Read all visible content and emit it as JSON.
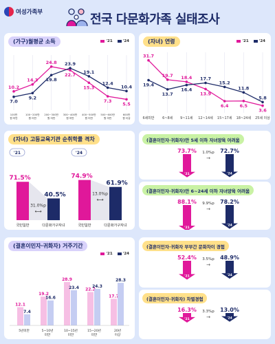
{
  "header": {
    "ministry": "여성가족부",
    "title": "전국 다문화가족 실태조사"
  },
  "legend": {
    "y21": "'21",
    "y24": "'24"
  },
  "colors": {
    "y21": "#e0189a",
    "y24": "#1d2b68",
    "background": "#dde7fb"
  },
  "panels": {
    "income_title": "(가구)월평균 소득",
    "age_title": "(자녀) 연령",
    "edu_title": "(자녀) 고등교육기관 순취학률 격차",
    "under5_title": "(결혼이민자·귀화자)만 5세 이하 자녀양육 어려움",
    "age6_24_title": "(결혼이민자·귀화자)만 6~24세 이하 자녀양육 어려움",
    "stay_title": "(결혼이민자·귀화자) 거주기간",
    "culture_title": "(결혼이민자·귀화자 부부간 문화차이 경험",
    "discrim_title": "(결혼이민자·귀화자) 차별경험"
  },
  "chart_data": [
    {
      "type": "line",
      "name": "income",
      "categories": [
        "100만 원 미만",
        "100~200만 원 미만",
        "200~300만 원 미만",
        "300~400만 원 미만",
        "400~500만 원 미만",
        "500~600만 원 미만",
        "600만 원 이상"
      ],
      "series": [
        {
          "name": "'21",
          "values": [
            10.2,
            14.3,
            24.8,
            22.7,
            15.3,
            7.3,
            5.5
          ]
        },
        {
          "name": "'24",
          "values": [
            7.0,
            9.2,
            19.8,
            23.9,
            19.1,
            12.4,
            10.4
          ]
        }
      ],
      "ylim": [
        0,
        30
      ]
    },
    {
      "type": "line",
      "name": "child_age",
      "categories": [
        "6세미만",
        "6~8세",
        "9~11세",
        "12~14세",
        "15~17세",
        "18~24세",
        "25세 이상"
      ],
      "series": [
        {
          "name": "'21",
          "values": [
            31.7,
            19.7,
            18.4,
            13.9,
            6.4,
            6.5,
            3.6
          ]
        },
        {
          "name": "'24",
          "values": [
            19.4,
            13.7,
            16.4,
            17.7,
            15.2,
            11.8,
            5.8
          ]
        }
      ],
      "ylim": [
        0,
        35
      ]
    },
    {
      "type": "bar",
      "name": "higher_edu",
      "groups": [
        {
          "year": "'21",
          "categories": [
            "국민일반",
            "다문화가구자녀"
          ],
          "values": [
            71.5,
            40.5
          ],
          "gap": "31.0%p"
        },
        {
          "year": "'24",
          "categories": [
            "국민일반",
            "다문화가구자녀"
          ],
          "values": [
            74.9,
            61.9
          ],
          "gap": "13.0%p"
        }
      ],
      "ylim": [
        0,
        100
      ]
    },
    {
      "type": "bar",
      "name": "under5",
      "categories": [
        "'21",
        "'24"
      ],
      "values": [
        73.7,
        72.7
      ],
      "diff": "1.0%p"
    },
    {
      "type": "bar",
      "name": "age6_24",
      "categories": [
        "'21",
        "'24"
      ],
      "values": [
        88.1,
        78.2
      ],
      "diff": "9.9%p"
    },
    {
      "type": "bar",
      "name": "stay",
      "categories": [
        "5년미만",
        "5~10년 미만",
        "10~15년 미만",
        "15~20년 미만",
        "20년 이상"
      ],
      "series": [
        {
          "name": "'21",
          "values": [
            12.1,
            19.2,
            28.9,
            22.2,
            17.7
          ]
        },
        {
          "name": "'24",
          "values": [
            7.4,
            16.6,
            23.4,
            24.3,
            28.3
          ]
        }
      ],
      "ylim": [
        0,
        32
      ]
    },
    {
      "type": "bar",
      "name": "culture",
      "categories": [
        "'21",
        "'24"
      ],
      "values": [
        52.4,
        48.9
      ],
      "diff": "3.5%p"
    },
    {
      "type": "bar",
      "name": "discrim",
      "categories": [
        "'21",
        "'24"
      ],
      "values": [
        16.3,
        13.0
      ],
      "diff": "3.3%p"
    }
  ]
}
